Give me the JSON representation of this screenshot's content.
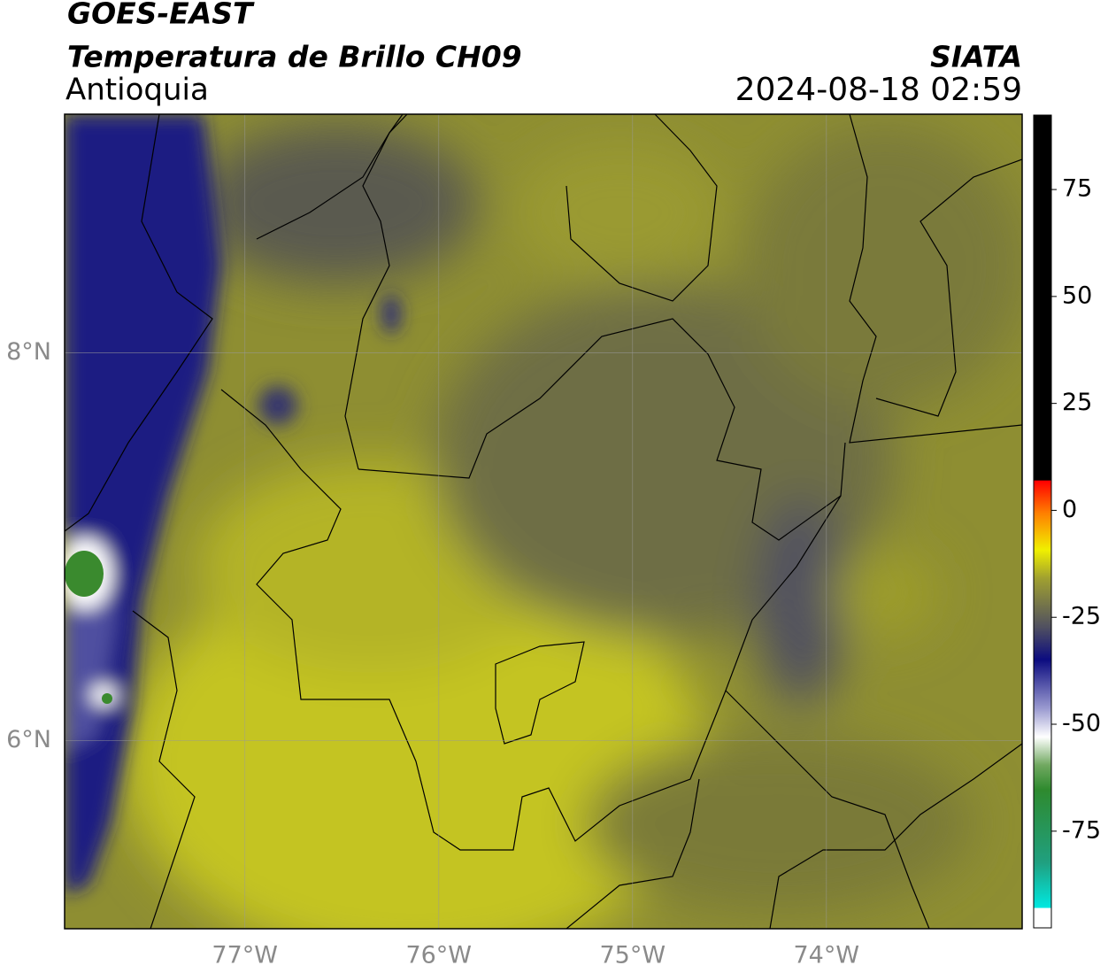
{
  "header": {
    "title": "GOES-EAST",
    "subtitle": "Temperatura de Brillo CH09",
    "region": "Antioquia",
    "source": "SIATA",
    "timestamp": "2024-08-18 02:59"
  },
  "map": {
    "xlim": [
      -77.93,
      -72.99
    ],
    "ylim": [
      5.03,
      9.23
    ],
    "xticks": [
      {
        "value": -77,
        "label": "77°W"
      },
      {
        "value": -76,
        "label": "76°W"
      },
      {
        "value": -75,
        "label": "75°W"
      },
      {
        "value": -74,
        "label": "74°W"
      }
    ],
    "yticks": [
      {
        "value": 8,
        "label": "8°N"
      },
      {
        "value": 6,
        "label": "6°N"
      }
    ],
    "grid": true
  },
  "colorbar": {
    "lim": [
      -97.6,
      92.4
    ],
    "ticks": [
      75,
      50,
      25,
      0,
      -25,
      -50,
      -75
    ]
  }
}
